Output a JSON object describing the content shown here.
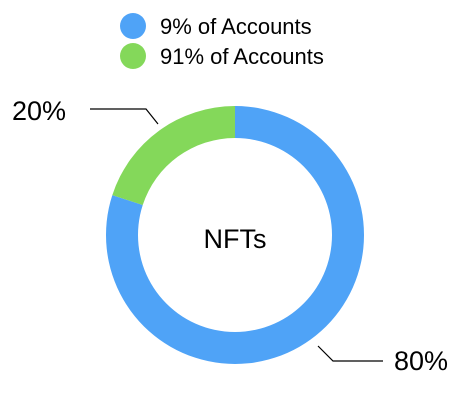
{
  "chart_data": {
    "type": "pie",
    "donut": true,
    "center_label": "NFTs",
    "legend_placement": "top",
    "slices": [
      {
        "legend": "9% of Accounts",
        "value": 80,
        "label": "80%",
        "color": "#4FA3F7"
      },
      {
        "legend": "91% of Accounts",
        "value": 20,
        "label": "20%",
        "color": "#84D85A"
      }
    ]
  }
}
